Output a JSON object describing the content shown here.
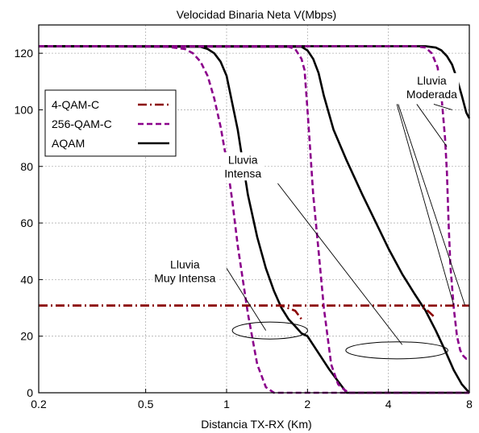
{
  "chart_data": {
    "type": "line",
    "title": "Velocidad Binaria Neta V(Mbps)",
    "xlabel": "Distancia TX-RX (Km)",
    "ylabel": "",
    "x_scale": "log",
    "xlim": [
      0.2,
      8
    ],
    "ylim": [
      0,
      130
    ],
    "x_ticks": [
      0.2,
      0.5,
      1,
      2,
      4,
      8
    ],
    "x_tick_labels": [
      "0.2",
      "0.5",
      "1",
      "2",
      "4",
      "8"
    ],
    "y_ticks": [
      0,
      20,
      40,
      60,
      80,
      100,
      120
    ],
    "y_tick_labels": [
      "0",
      "20",
      "40",
      "60",
      "80",
      "100",
      "120"
    ],
    "grid": true,
    "legend_position": "top-left",
    "legend": [
      {
        "label": "4-QAM-C",
        "color": "#8b0000",
        "dash": "dashdot"
      },
      {
        "label": "256-QAM-C",
        "color": "#8b008b",
        "dash": "dashed"
      },
      {
        "label": "AQAM",
        "color": "#000000",
        "dash": "solid"
      }
    ],
    "series": [
      {
        "group": "muy-intensa",
        "label_ref": "4-QAM-C",
        "color": "#8b0000",
        "dash": "dashdot",
        "x": [
          0.2,
          1.6,
          1.8,
          1.9
        ],
        "y": [
          30.8,
          30.8,
          29,
          26
        ]
      },
      {
        "group": "muy-intensa",
        "label_ref": "256-QAM-C",
        "color": "#8b008b",
        "dash": "dashed",
        "x": [
          0.2,
          0.6,
          0.7,
          0.75,
          0.8,
          0.85,
          0.9,
          0.95,
          1.0,
          1.05,
          1.1,
          1.2,
          1.3,
          1.4,
          1.5,
          8
        ],
        "y": [
          122.5,
          122.3,
          121.5,
          120,
          117,
          112,
          104,
          94,
          82,
          68,
          52,
          28,
          10,
          2,
          0,
          0
        ]
      },
      {
        "group": "muy-intensa",
        "label_ref": "AQAM",
        "color": "#000000",
        "dash": "solid",
        "x": [
          0.2,
          0.8,
          0.85,
          0.9,
          0.95,
          1.0,
          1.1,
          1.2,
          1.3,
          1.4,
          1.5,
          1.6,
          1.7,
          1.8,
          1.9,
          2.0,
          2.2,
          2.4,
          2.6,
          2.8,
          8
        ],
        "y": [
          122.5,
          122.3,
          121.5,
          120,
          117,
          112,
          93,
          70,
          55,
          44,
          36,
          30,
          26,
          23.5,
          21,
          20,
          14,
          8.5,
          4,
          0,
          0
        ]
      },
      {
        "group": "intensa",
        "label_ref": "4-QAM-C",
        "color": "#8b0000",
        "dash": "dashdot",
        "x": [
          0.2,
          5.2,
          5.6,
          5.9
        ],
        "y": [
          30.8,
          30.8,
          29,
          27
        ]
      },
      {
        "group": "intensa",
        "label_ref": "256-QAM-C",
        "color": "#8b008b",
        "dash": "dashed",
        "x": [
          0.2,
          1.7,
          1.8,
          1.9,
          1.95,
          2.0,
          2.05,
          2.1,
          2.2,
          2.3,
          2.45,
          2.6,
          2.75,
          2.85,
          8
        ],
        "y": [
          122.5,
          122.3,
          121.5,
          118,
          114,
          100,
          85,
          70,
          50,
          30,
          10,
          3,
          1,
          0,
          0
        ]
      },
      {
        "group": "intensa",
        "label_ref": "AQAM",
        "color": "#000000",
        "dash": "solid",
        "x": [
          0.2,
          1.9,
          2.0,
          2.1,
          2.2,
          2.3,
          2.5,
          2.8,
          3.2,
          3.6,
          4.0,
          4.5,
          5.0,
          5.5,
          6.0,
          6.5,
          7.0,
          7.5,
          8.0
        ],
        "y": [
          122.5,
          122.3,
          121,
          118,
          113,
          105,
          93,
          82,
          70,
          60,
          51,
          42,
          35,
          29,
          22,
          15,
          8,
          3,
          0
        ]
      },
      {
        "group": "moderada",
        "label_ref": "4-QAM-C",
        "color": "#8b0000",
        "dash": "dashdot",
        "x": [
          0.2,
          8
        ],
        "y": [
          30.8,
          30.8
        ]
      },
      {
        "group": "moderada",
        "label_ref": "256-QAM-C",
        "color": "#8b008b",
        "dash": "dashed",
        "x": [
          0.2,
          5.0,
          5.5,
          5.8,
          6.1,
          6.3,
          6.5,
          6.6,
          6.7,
          6.8,
          7.0,
          7.2,
          7.4,
          7.6,
          7.8,
          8.0
        ],
        "y": [
          122.5,
          122.5,
          122,
          120,
          115,
          105,
          90,
          78,
          60,
          45,
          30,
          20,
          15,
          13,
          12,
          12
        ]
      },
      {
        "group": "moderada",
        "label_ref": "AQAM",
        "color": "#000000",
        "dash": "solid",
        "x": [
          0.2,
          5.5,
          6.0,
          6.3,
          6.6,
          6.9,
          7.2,
          7.5,
          7.8,
          8.0
        ],
        "y": [
          122.5,
          122.5,
          122,
          121,
          119,
          116,
          111,
          105,
          99,
          97
        ]
      }
    ],
    "annotations": [
      {
        "text": [
          "Lluvia",
          "Moderada"
        ],
        "x": 5.8,
        "y": 109
      },
      {
        "text": [
          "Lluvia",
          "Intensa"
        ],
        "x": 1.15,
        "y": 81
      },
      {
        "text": [
          "Lluvia",
          "Muy Intensa"
        ],
        "x": 0.7,
        "y": 44
      }
    ],
    "ellipses": [
      {
        "cx": 1.45,
        "cy": 22,
        "rx_log": 0.14,
        "ry": 3
      },
      {
        "cx": 4.3,
        "cy": 15,
        "rx_log": 0.19,
        "ry": 3
      }
    ],
    "leader_lines": [
      [
        [
          5.9,
          102
        ],
        [
          6.9,
          100
        ]
      ],
      [
        [
          4.35,
          102
        ],
        [
          7.7,
          31
        ]
      ],
      [
        [
          5.1,
          102
        ],
        [
          6.6,
          87
        ]
      ],
      [
        [
          4.3,
          102
        ],
        [
          7.0,
          31
        ]
      ],
      [
        [
          1.55,
          74
        ],
        [
          4.5,
          17
        ]
      ],
      [
        [
          1.0,
          44
        ],
        [
          1.4,
          22
        ]
      ]
    ]
  }
}
